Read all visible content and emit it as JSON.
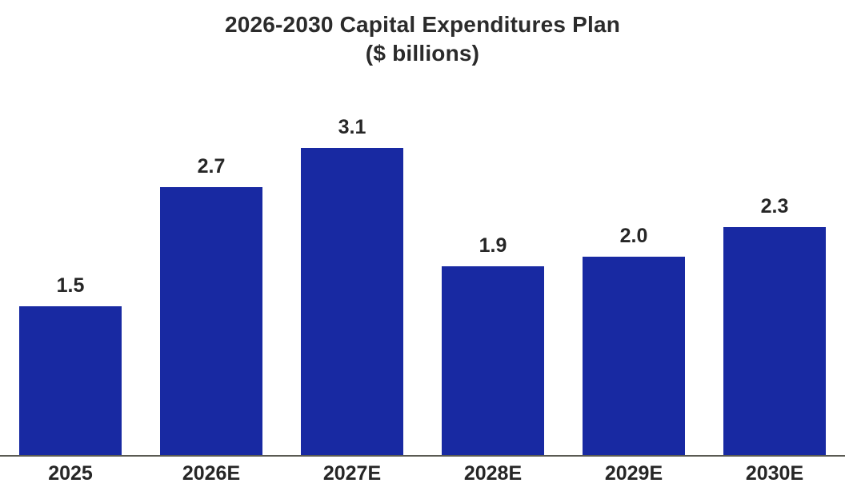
{
  "chart_data": {
    "type": "bar",
    "title": "2026-2030 Capital Expenditures Plan",
    "subtitle": "($ billions)",
    "categories": [
      "2025",
      "2026E",
      "2027E",
      "2028E",
      "2029E",
      "2030E"
    ],
    "values": [
      1.5,
      2.7,
      3.1,
      1.9,
      2.0,
      2.3
    ],
    "value_labels": [
      "1.5",
      "2.7",
      "3.1",
      "1.9",
      "2.0",
      "2.3"
    ],
    "ylabel": "",
    "xlabel": "",
    "ylim": [
      0,
      3.1
    ],
    "grid": false,
    "legend_position": "none",
    "bar_color": "#1829a2",
    "axis_line_color": "#5a5a52",
    "text_color": "#262626",
    "title_color": "#2b2b2b",
    "background_color": "#ffffff"
  }
}
